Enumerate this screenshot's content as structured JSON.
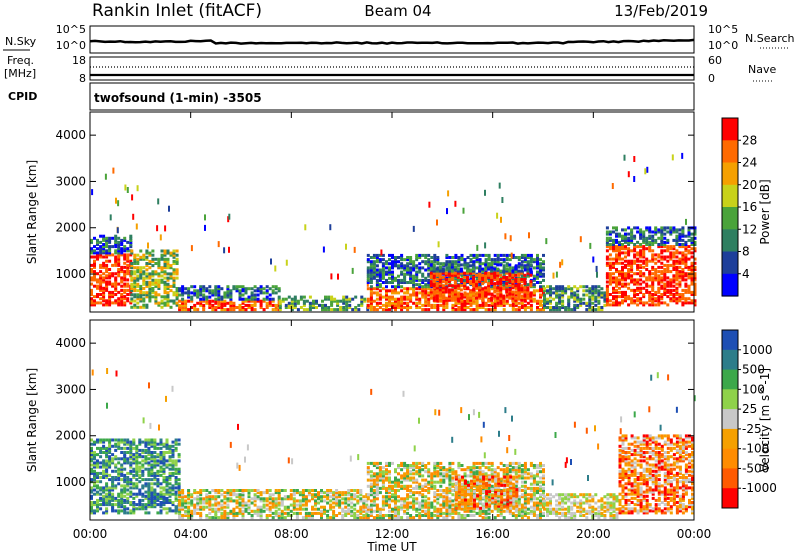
{
  "header": {
    "station": "Rankin Inlet (fitACF)",
    "beam": "Beam 04",
    "date": "13/Feb/2019"
  },
  "nsky_panel": {
    "label": "N.Sky",
    "right_label": "N.Search",
    "left_ticks": [
      "10^5",
      "10^0"
    ],
    "right_ticks": [
      "10^5",
      "10^0"
    ]
  },
  "freq_panel": {
    "label_line1": "Freq.",
    "label_line2": "[MHz]",
    "right_label": "Nave",
    "left_ticks": [
      "18",
      "8"
    ],
    "right_ticks": [
      "60",
      "0"
    ]
  },
  "cpid_panel": {
    "label": "CPID",
    "text": "twofsound (1-min) -3505"
  },
  "colors": {
    "power_scale": [
      "#0000ff",
      "#1e3f9a",
      "#2f7f61",
      "#4aa33a",
      "#c8d21a",
      "#f5a000",
      "#ff6a00",
      "#ff0000"
    ],
    "velocity_scale": [
      "#1e4fb4",
      "#2d7d8a",
      "#3ca84a",
      "#8fd24a",
      "#c8c8c8",
      "#f5a000",
      "#ff8c00",
      "#ff5a00",
      "#ff0000"
    ]
  },
  "chart_data": [
    {
      "type": "heatmap",
      "title": "Power",
      "ylabel": "Slant Range [km]",
      "xlabel": "",
      "colorbar_label": "Power [dB]",
      "colorbar_ticks": [
        "28",
        "24",
        "20",
        "16",
        "12",
        "8",
        "4"
      ],
      "x_ticks": [
        "00:00",
        "04:00",
        "08:00",
        "12:00",
        "16:00",
        "20:00",
        "00:00"
      ],
      "y_ticks": [
        "1000",
        "2000",
        "3000",
        "4000"
      ],
      "xlim_hours": [
        0,
        24
      ],
      "ylim_km": [
        180,
        4500
      ],
      "regions": [
        {
          "t": [
            0.0,
            1.6
          ],
          "r": [
            300,
            1800
          ],
          "level": "high"
        },
        {
          "t": [
            1.6,
            3.5
          ],
          "r": [
            250,
            1500
          ],
          "level": "mid"
        },
        {
          "t": [
            3.5,
            7.5
          ],
          "r": [
            200,
            700
          ],
          "level": "mixed"
        },
        {
          "t": [
            7.5,
            11.0
          ],
          "r": [
            200,
            500
          ],
          "level": "low"
        },
        {
          "t": [
            11.0,
            18.0
          ],
          "r": [
            200,
            1400
          ],
          "level": "mixed"
        },
        {
          "t": [
            13.5,
            17.5
          ],
          "r": [
            400,
            1200
          ],
          "level": "high"
        },
        {
          "t": [
            18.0,
            20.5
          ],
          "r": [
            200,
            700
          ],
          "level": "low"
        },
        {
          "t": [
            20.5,
            24.0
          ],
          "r": [
            300,
            2000
          ],
          "level": "high"
        }
      ]
    },
    {
      "type": "heatmap",
      "title": "Velocity",
      "ylabel": "Slant Range [km]",
      "xlabel": "Time UT",
      "colorbar_label": "Velocity [m s^-1]",
      "colorbar_ticks": [
        "1000",
        "500",
        "100",
        "25",
        "-25",
        "-100",
        "-500",
        "-1000"
      ],
      "x_ticks": [
        "00:00",
        "04:00",
        "08:00",
        "12:00",
        "16:00",
        "20:00",
        "00:00"
      ],
      "y_ticks": [
        "1000",
        "2000",
        "3000",
        "4000"
      ],
      "xlim_hours": [
        0,
        24
      ],
      "ylim_km": [
        180,
        4500
      ],
      "regions": [
        {
          "t": [
            0.0,
            3.5
          ],
          "r": [
            300,
            1900
          ],
          "level": "toward"
        },
        {
          "t": [
            3.5,
            11.0
          ],
          "r": [
            200,
            800
          ],
          "level": "mixed"
        },
        {
          "t": [
            11.0,
            18.0
          ],
          "r": [
            200,
            1400
          ],
          "level": "mixed"
        },
        {
          "t": [
            14.5,
            17.0
          ],
          "r": [
            400,
            1100
          ],
          "level": "away"
        },
        {
          "t": [
            18.0,
            21.0
          ],
          "r": [
            200,
            700
          ],
          "level": "low"
        },
        {
          "t": [
            21.0,
            24.0
          ],
          "r": [
            300,
            2000
          ],
          "level": "away"
        }
      ]
    }
  ]
}
